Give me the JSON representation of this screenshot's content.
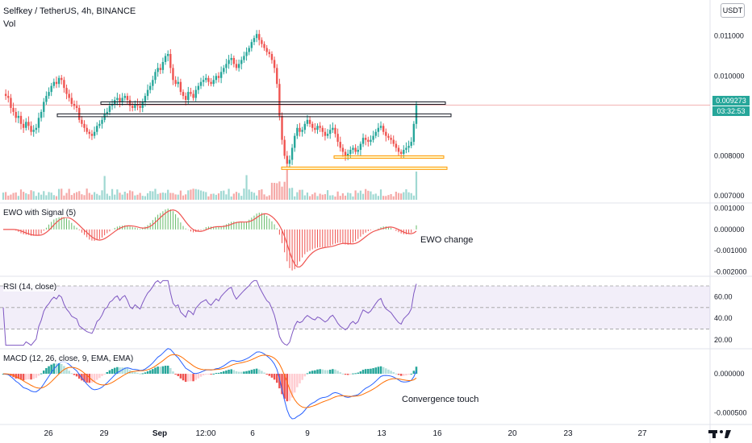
{
  "header": {
    "symbol_line": "Selfkey / TetherUS, 4h, BINANCE",
    "vol_label": "Vol",
    "currency_button": "USDT"
  },
  "price_tag": {
    "price": "0.009273",
    "countdown": "03:32:53",
    "color": "#26a69a"
  },
  "panes": {
    "ewo_title": "EWO with Signal (5)",
    "rsi_title": "RSI (14, close)",
    "macd_title": "MACD (12, 26, close, 9, EMA, EMA)"
  },
  "annotations": {
    "ewo": "EWO change",
    "macd": "Convergence touch"
  },
  "colors": {
    "up": "#26a69a",
    "down": "#ef5350",
    "rsi": "#7e57c2",
    "macd": "#2962ff",
    "signal": "#ff6d00",
    "band": "#ff9800"
  },
  "chart_data": [
    {
      "type": "candlestick",
      "pane": "price",
      "title": "Selfkey / TetherUS, 4h, BINANCE",
      "y_ticks": [
        "0.011000",
        "0.010000",
        "0.008000",
        "0.007000"
      ],
      "y_tick_values": [
        0.011,
        0.01,
        0.008,
        0.007
      ],
      "x_ticks": [
        "26",
        "29",
        "Sep",
        "12:00",
        "6",
        "9",
        "13",
        "16",
        "20",
        "23",
        "27"
      ],
      "ylim": [
        0.0069,
        0.0117
      ],
      "close_series": [
        0.00955,
        0.0095,
        0.00945,
        0.0092,
        0.0091,
        0.00895,
        0.009,
        0.0088,
        0.0087,
        0.00885,
        0.00875,
        0.0086,
        0.00865,
        0.0087,
        0.00895,
        0.0091,
        0.00935,
        0.0095,
        0.0096,
        0.00975,
        0.00985,
        0.0098,
        0.00995,
        0.0099,
        0.0097,
        0.00955,
        0.00945,
        0.0093,
        0.00925,
        0.0092,
        0.0089,
        0.0088,
        0.0087,
        0.0086,
        0.00855,
        0.0085,
        0.0086,
        0.00875,
        0.0088,
        0.0089,
        0.00905,
        0.0091,
        0.00925,
        0.0093,
        0.0094,
        0.00945,
        0.00935,
        0.00945,
        0.0095,
        0.0094,
        0.00925,
        0.0092,
        0.0093,
        0.00925,
        0.0092,
        0.00935,
        0.0095,
        0.00965,
        0.00975,
        0.0099,
        0.0101,
        0.0102,
        0.01015,
        0.01035,
        0.0105,
        0.01055,
        0.0102,
        0.0099,
        0.0098,
        0.00985,
        0.0096,
        0.0095,
        0.0094,
        0.0096,
        0.00955,
        0.00945,
        0.00965,
        0.00975,
        0.00985,
        0.0099,
        0.00995,
        0.00985,
        0.0098,
        0.0099,
        0.01,
        0.00995,
        0.0101,
        0.0102,
        0.0103,
        0.0104,
        0.01045,
        0.0103,
        0.0102,
        0.0103,
        0.0104,
        0.0105,
        0.0106,
        0.0107,
        0.01085,
        0.01095,
        0.01105,
        0.0109,
        0.0108,
        0.0107,
        0.0106,
        0.01055,
        0.0104,
        0.0102,
        0.0098,
        0.009,
        0.0084,
        0.008,
        0.0078,
        0.0079,
        0.0082,
        0.0085,
        0.0087,
        0.0086,
        0.00865,
        0.0088,
        0.0089,
        0.0088,
        0.0087,
        0.00865,
        0.00875,
        0.0087,
        0.0086,
        0.0085,
        0.00855,
        0.00865,
        0.0087,
        0.00855,
        0.00835,
        0.0082,
        0.0081,
        0.008,
        0.00805,
        0.00815,
        0.0082,
        0.0081,
        0.00815,
        0.0083,
        0.00845,
        0.0084,
        0.00835,
        0.0084,
        0.0085,
        0.0086,
        0.0087,
        0.00875,
        0.0086,
        0.0085,
        0.00845,
        0.0084,
        0.0083,
        0.0082,
        0.0081,
        0.00805,
        0.00815,
        0.0082,
        0.00825,
        0.00835,
        0.0088,
        0.00927
      ],
      "volume_ylim": [
        0,
        10
      ]
    },
    {
      "type": "histogram",
      "pane": "ewo",
      "title": "EWO with Signal (5)",
      "y_ticks": [
        "0.001000",
        "0.000000",
        "-0.001000",
        "-0.002000"
      ],
      "y_tick_values": [
        0.001,
        0,
        -0.001,
        -0.002
      ],
      "ylim": [
        -0.0021,
        0.0011
      ]
    },
    {
      "type": "line",
      "pane": "rsi",
      "title": "RSI (14, close)",
      "y_ticks": [
        "60.00",
        "40.00",
        "20.00"
      ],
      "y_tick_values": [
        60,
        40,
        20
      ],
      "band": [
        30,
        70
      ],
      "midline": 50,
      "ylim": [
        14,
        76
      ]
    },
    {
      "type": "line",
      "pane": "macd",
      "title": "MACD (12, 26, close, 9, EMA, EMA)",
      "y_ticks": [
        "0.000000",
        "-0.000500"
      ],
      "y_tick_values": [
        0,
        -0.0005
      ],
      "ylim": [
        -0.00062,
        0.00028
      ]
    }
  ],
  "levels": {
    "resistance_box_1": [
      0.00935,
      0.0093
    ],
    "resistance_box_2": [
      0.00905,
      0.00898
    ],
    "support_box_1": [
      0.008,
      0.00794
    ],
    "support_box_2": [
      0.00772,
      0.00767
    ]
  }
}
